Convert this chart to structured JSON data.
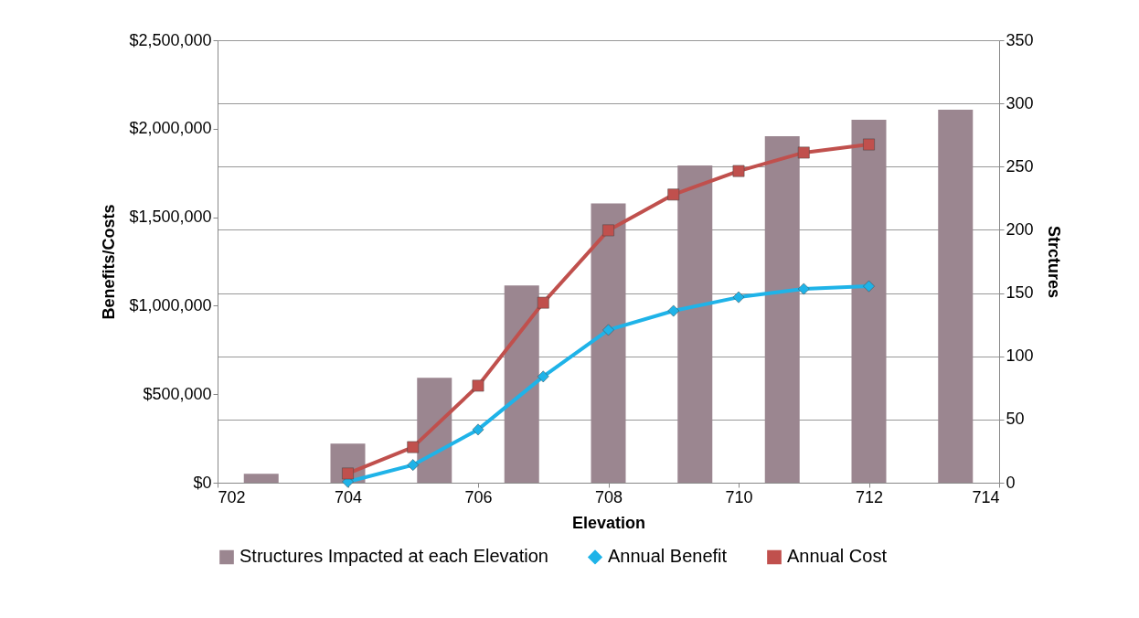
{
  "chart_data": {
    "type": "line",
    "xlabel": "Elevation",
    "ylabel": "Benefits/Costs",
    "y2label": "Strctures",
    "xlim": [
      702,
      714
    ],
    "xticks": [
      702,
      704,
      706,
      708,
      710,
      712,
      714
    ],
    "ylim": [
      0,
      2500000
    ],
    "yticks": [
      {
        "value": 0,
        "label": "$0"
      },
      {
        "value": 500000,
        "label": "$500,000"
      },
      {
        "value": 1000000,
        "label": "$1,000,000"
      },
      {
        "value": 1500000,
        "label": "$1,500,000"
      },
      {
        "value": 2000000,
        "label": "$2,000,000"
      },
      {
        "value": 2500000,
        "label": "$2,500,000"
      }
    ],
    "y2lim": [
      0,
      350
    ],
    "y2ticks": [
      0,
      50,
      100,
      150,
      200,
      250,
      300,
      350
    ],
    "grid": "y",
    "legend": "bottom",
    "series": [
      {
        "name": "Structures Impacted at each Elevation",
        "type": "bar",
        "axis": "y2",
        "color": "#9b8690",
        "x": [
          702.67,
          704,
          705.33,
          706.67,
          708,
          709.33,
          710.67,
          712,
          713.33
        ],
        "values": [
          7,
          31,
          83,
          156,
          221,
          251,
          274,
          287,
          295
        ]
      },
      {
        "name": "Annual Benefit",
        "color": "#1fb3e8",
        "marker": "diamond",
        "x": [
          704,
          705,
          706,
          707,
          708,
          709,
          710,
          711,
          712
        ],
        "values": [
          5000,
          100000,
          300000,
          600000,
          863000,
          971000,
          1048000,
          1095000,
          1110000
        ]
      },
      {
        "name": "Annual Cost",
        "color": "#c0504d",
        "marker": "square",
        "x": [
          704,
          705,
          706,
          707,
          708,
          709,
          710,
          711,
          712
        ],
        "values": [
          52000,
          201000,
          548000,
          1017000,
          1426000,
          1628000,
          1761000,
          1865000,
          1911000
        ]
      }
    ]
  }
}
